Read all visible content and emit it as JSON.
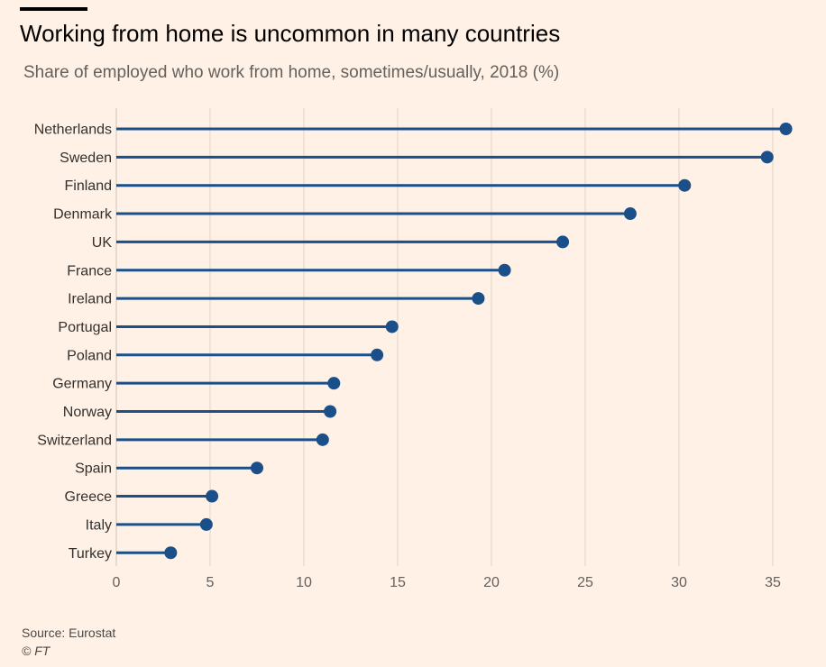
{
  "header": {
    "title": "Working from home is uncommon in many countries",
    "subtitle": "Share of employed who work from home, sometimes/usually, 2018 (%)"
  },
  "footer": {
    "source": "Source: Eurostat",
    "credit": "© FT"
  },
  "colors": {
    "background": "#fff1e5",
    "series": "#1a4f8a",
    "grid": "#e6d9ce",
    "axis_text": "#66605c",
    "label_text": "#33302e"
  },
  "chart_data": {
    "type": "lollipop",
    "orientation": "horizontal",
    "categories": [
      "Netherlands",
      "Sweden",
      "Finland",
      "Denmark",
      "UK",
      "France",
      "Ireland",
      "Portugal",
      "Poland",
      "Germany",
      "Norway",
      "Switzerland",
      "Spain",
      "Greece",
      "Italy",
      "Turkey"
    ],
    "values": [
      35.7,
      34.7,
      30.3,
      27.4,
      23.8,
      20.7,
      19.3,
      14.7,
      13.9,
      11.6,
      11.4,
      11.0,
      7.5,
      5.1,
      4.8,
      2.9
    ],
    "xlim": [
      0,
      35
    ],
    "xticks": [
      0,
      5,
      10,
      15,
      20,
      25,
      30,
      35
    ],
    "grid": true,
    "title": "Working from home is uncommon in many countries",
    "subtitle": "Share of employed who work from home, sometimes/usually, 2018 (%)"
  }
}
